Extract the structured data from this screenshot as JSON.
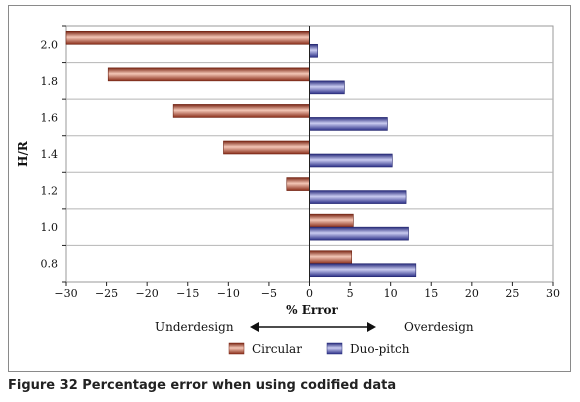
{
  "caption": "Figure 32 Percentage error when using codified data",
  "chart_data": {
    "type": "bar",
    "orientation": "horizontal",
    "categories": [
      "2.0",
      "1.8",
      "1.6",
      "1.4",
      "1.2",
      "1.0",
      "0.8"
    ],
    "series": [
      {
        "name": "Circular",
        "values": [
          -30.0,
          -24.8,
          -16.8,
          -10.6,
          -2.8,
          5.4,
          5.2
        ],
        "color": "#b0442a"
      },
      {
        "name": "Duo-pitch",
        "values": [
          1.0,
          4.3,
          9.6,
          10.2,
          11.9,
          12.2,
          13.1
        ],
        "color": "#3c3f9c"
      }
    ],
    "ylabel": "H/R",
    "xlabel": "% Error",
    "xlim": [
      -30,
      30
    ],
    "xticks": [
      -30,
      -25,
      -20,
      -15,
      -10,
      -5,
      0,
      5,
      10,
      15,
      20,
      25,
      30
    ],
    "grid": true,
    "legend_placement": "bottom",
    "annotation": {
      "left": "Underdesign",
      "right": "Overdesign"
    }
  }
}
